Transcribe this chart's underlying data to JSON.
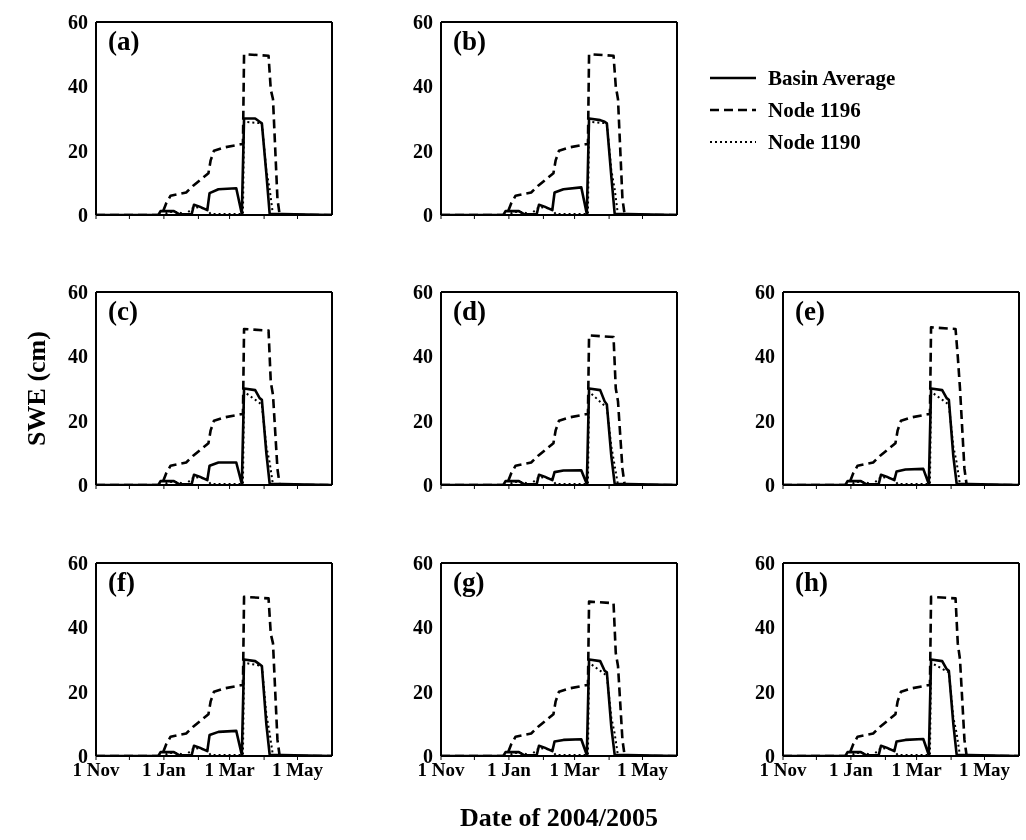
{
  "chart_data": [
    {
      "type": "line",
      "title": "(a)",
      "ylim": [
        0,
        60
      ],
      "yticks": [
        0,
        20,
        40,
        60
      ],
      "xlim": [
        "2004-11-01",
        "2005-06-01"
      ],
      "xticks": [
        {
          "value": "2004-11-01",
          "label": null
        },
        {
          "value": "2004-12-01",
          "label": null
        },
        {
          "value": "2005-01-01",
          "label": null
        },
        {
          "value": "2005-02-01",
          "label": null
        },
        {
          "value": "2005-03-01",
          "label": null
        },
        {
          "value": "2005-04-01",
          "label": null
        },
        {
          "value": "2005-05-01",
          "label": null
        }
      ],
      "tick_labels": "y",
      "series": [
        {
          "color": "#000000",
          "line_style": "solid",
          "x": [
            "2004-11-01",
            "2004-12-27",
            "2004-12-29",
            "2005-01-10",
            "2005-01-15",
            "2005-01-26",
            "2005-01-28",
            "2005-02-02",
            "2005-02-09",
            "2005-02-11",
            "2005-02-19",
            "2005-03-07",
            "2005-03-12",
            "2005-03-14",
            "2005-03-24",
            "2005-03-28",
            "2005-03-30",
            "2005-04-03",
            "2005-04-06",
            "2005-06-01"
          ],
          "values": [
            0,
            0,
            1.2,
            1.2,
            0.2,
            0.3,
            3.2,
            2.6,
            1.5,
            6.8,
            8,
            8.3,
            0.3,
            30,
            30,
            29,
            28.5,
            13,
            0.4,
            0
          ]
        },
        {
          "color": "#000000",
          "line_style": "dashed",
          "x": [
            "2004-11-01",
            "2004-12-30",
            "2005-01-03",
            "2005-01-07",
            "2005-01-21",
            "2005-01-27",
            "2005-02-10",
            "2005-02-12",
            "2005-02-15",
            "2005-02-24",
            "2005-03-11",
            "2005-03-13",
            "2005-03-14",
            "2005-04-05",
            "2005-04-07",
            "2005-04-09",
            "2005-04-13",
            "2005-04-15",
            "2005-06-01"
          ],
          "values": [
            0,
            0,
            3.6,
            6,
            7,
            9,
            13,
            17,
            20,
            21,
            22,
            22,
            50,
            49.5,
            39,
            36,
            5,
            0,
            0
          ]
        },
        {
          "color": "#000000",
          "line_style": "dotted",
          "x": [
            "2004-11-01",
            "2005-01-01",
            "2005-01-05",
            "2005-01-15",
            "2005-01-20",
            "2005-01-28",
            "2005-02-08",
            "2005-02-12",
            "2005-03-13",
            "2005-03-14",
            "2005-03-30",
            "2005-04-03",
            "2005-04-06",
            "2005-04-09",
            "2005-06-01"
          ],
          "values": [
            0,
            0,
            1,
            0.8,
            0,
            2.5,
            2,
            0.3,
            0.3,
            29,
            28.5,
            14,
            8,
            0,
            0
          ]
        }
      ]
    },
    {
      "type": "line",
      "title": "(b)",
      "ylim": [
        0,
        60
      ],
      "yticks": [
        0,
        20,
        40,
        60
      ],
      "xlim": [
        "2004-11-01",
        "2005-06-01"
      ],
      "xticks": [
        {
          "value": "2004-11-01",
          "label": null
        },
        {
          "value": "2004-12-01",
          "label": null
        },
        {
          "value": "2005-01-01",
          "label": null
        },
        {
          "value": "2005-02-01",
          "label": null
        },
        {
          "value": "2005-03-01",
          "label": null
        },
        {
          "value": "2005-04-01",
          "label": null
        },
        {
          "value": "2005-05-01",
          "label": null
        }
      ],
      "tick_labels": "y",
      "legend": "right",
      "series": [
        {
          "name": "Basin Average",
          "color": "#000000",
          "line_style": "solid",
          "x": [
            "2004-11-01",
            "2004-12-27",
            "2004-12-29",
            "2005-01-10",
            "2005-01-15",
            "2005-01-26",
            "2005-01-28",
            "2005-02-02",
            "2005-02-09",
            "2005-02-11",
            "2005-02-19",
            "2005-03-07",
            "2005-03-12",
            "2005-03-14",
            "2005-03-24",
            "2005-03-28",
            "2005-03-30",
            "2005-04-03",
            "2005-04-06",
            "2005-06-01"
          ],
          "values": [
            0,
            0,
            1.2,
            1.2,
            0.2,
            0.3,
            3.2,
            2.6,
            1.5,
            7,
            8,
            8.6,
            0.3,
            30,
            29.5,
            29,
            28.5,
            12,
            0.4,
            0
          ]
        },
        {
          "name": "Node 1196",
          "color": "#000000",
          "line_style": "dashed",
          "x": [
            "2004-11-01",
            "2004-12-30",
            "2005-01-03",
            "2005-01-07",
            "2005-01-21",
            "2005-01-27",
            "2005-02-10",
            "2005-02-12",
            "2005-02-15",
            "2005-02-24",
            "2005-03-11",
            "2005-03-13",
            "2005-03-14",
            "2005-04-05",
            "2005-04-07",
            "2005-04-09",
            "2005-04-13",
            "2005-04-15",
            "2005-06-01"
          ],
          "values": [
            0,
            0,
            3.6,
            6,
            7,
            9,
            13,
            17,
            20,
            21,
            22,
            22,
            50,
            49.5,
            40,
            36,
            5,
            0,
            0
          ]
        },
        {
          "name": "Node 1190",
          "color": "#000000",
          "line_style": "dotted",
          "x": [
            "2004-11-01",
            "2005-01-01",
            "2005-01-05",
            "2005-01-15",
            "2005-01-20",
            "2005-01-28",
            "2005-02-08",
            "2005-02-12",
            "2005-03-13",
            "2005-03-14",
            "2005-03-30",
            "2005-04-03",
            "2005-04-06",
            "2005-04-09",
            "2005-06-01"
          ],
          "values": [
            0,
            0,
            1,
            0.8,
            0,
            2.5,
            2,
            0.3,
            0.3,
            29,
            28.5,
            14,
            8,
            0,
            0
          ]
        }
      ]
    },
    {
      "type": "line",
      "title": "(c)",
      "ylabel": "SWE (cm)",
      "ylim": [
        0,
        60
      ],
      "yticks": [
        0,
        20,
        40,
        60
      ],
      "xlim": [
        "2004-11-01",
        "2005-06-01"
      ],
      "xticks": [
        {
          "value": "2004-11-01",
          "label": null
        },
        {
          "value": "2004-12-01",
          "label": null
        },
        {
          "value": "2005-01-01",
          "label": null
        },
        {
          "value": "2005-02-01",
          "label": null
        },
        {
          "value": "2005-03-01",
          "label": null
        },
        {
          "value": "2005-04-01",
          "label": null
        },
        {
          "value": "2005-05-01",
          "label": null
        }
      ],
      "tick_labels": "y",
      "series": [
        {
          "color": "#000000",
          "line_style": "solid",
          "x": [
            "2004-11-01",
            "2004-12-27",
            "2004-12-29",
            "2005-01-10",
            "2005-01-15",
            "2005-01-26",
            "2005-01-28",
            "2005-02-02",
            "2005-02-09",
            "2005-02-11",
            "2005-02-19",
            "2005-03-07",
            "2005-03-12",
            "2005-03-14",
            "2005-03-24",
            "2005-03-28",
            "2005-03-30",
            "2005-04-03",
            "2005-04-06",
            "2005-06-01"
          ],
          "values": [
            0,
            0,
            1.2,
            1.2,
            0.2,
            0.3,
            3.2,
            2.6,
            1.5,
            6,
            7,
            7,
            0.3,
            30,
            29.5,
            27,
            26.5,
            10,
            0.4,
            0
          ]
        },
        {
          "color": "#000000",
          "line_style": "dashed",
          "x": [
            "2004-11-01",
            "2004-12-30",
            "2005-01-03",
            "2005-01-07",
            "2005-01-21",
            "2005-01-27",
            "2005-02-10",
            "2005-02-12",
            "2005-02-15",
            "2005-02-24",
            "2005-03-11",
            "2005-03-13",
            "2005-03-14",
            "2005-04-05",
            "2005-04-07",
            "2005-04-09",
            "2005-04-13",
            "2005-04-15",
            "2005-06-01"
          ],
          "values": [
            0,
            0,
            3.6,
            6,
            7,
            9,
            13,
            17,
            20,
            21,
            22,
            22,
            48.5,
            48,
            32,
            28,
            5,
            0,
            0
          ]
        },
        {
          "color": "#000000",
          "line_style": "dotted",
          "x": [
            "2004-11-01",
            "2005-01-01",
            "2005-01-05",
            "2005-01-15",
            "2005-01-20",
            "2005-01-28",
            "2005-02-08",
            "2005-02-12",
            "2005-03-13",
            "2005-03-14",
            "2005-03-30",
            "2005-04-03",
            "2005-04-06",
            "2005-04-09",
            "2005-06-01"
          ],
          "values": [
            0,
            0,
            1,
            0.8,
            0,
            2.5,
            2,
            0.3,
            0.3,
            29,
            25,
            12,
            7,
            0,
            0
          ]
        }
      ]
    },
    {
      "type": "line",
      "title": "(d)",
      "ylim": [
        0,
        60
      ],
      "yticks": [
        0,
        20,
        40,
        60
      ],
      "xlim": [
        "2004-11-01",
        "2005-06-01"
      ],
      "xticks": [
        {
          "value": "2004-11-01",
          "label": null
        },
        {
          "value": "2004-12-01",
          "label": null
        },
        {
          "value": "2005-01-01",
          "label": null
        },
        {
          "value": "2005-02-01",
          "label": null
        },
        {
          "value": "2005-03-01",
          "label": null
        },
        {
          "value": "2005-04-01",
          "label": null
        },
        {
          "value": "2005-05-01",
          "label": null
        }
      ],
      "tick_labels": "y",
      "series": [
        {
          "color": "#000000",
          "line_style": "solid",
          "x": [
            "2004-11-01",
            "2004-12-27",
            "2004-12-29",
            "2005-01-10",
            "2005-01-15",
            "2005-01-26",
            "2005-01-28",
            "2005-02-02",
            "2005-02-09",
            "2005-02-11",
            "2005-02-19",
            "2005-03-07",
            "2005-03-12",
            "2005-03-14",
            "2005-03-24",
            "2005-03-28",
            "2005-03-30",
            "2005-04-03",
            "2005-04-06",
            "2005-06-01"
          ],
          "values": [
            0,
            0,
            1.2,
            1.2,
            0.2,
            0.3,
            3.2,
            2.6,
            1.5,
            4,
            4.5,
            4.6,
            0.3,
            30,
            29.5,
            26,
            25,
            9,
            0.4,
            0
          ]
        },
        {
          "color": "#000000",
          "line_style": "dashed",
          "x": [
            "2004-11-01",
            "2004-12-30",
            "2005-01-03",
            "2005-01-07",
            "2005-01-21",
            "2005-01-27",
            "2005-02-10",
            "2005-02-12",
            "2005-02-15",
            "2005-02-24",
            "2005-03-11",
            "2005-03-13",
            "2005-03-14",
            "2005-04-05",
            "2005-04-07",
            "2005-04-09",
            "2005-04-13",
            "2005-04-15",
            "2005-06-01"
          ],
          "values": [
            0,
            0,
            3.6,
            6,
            7,
            9,
            13,
            17,
            20,
            21,
            22,
            22,
            46.5,
            46,
            30,
            26,
            5,
            0,
            0
          ]
        },
        {
          "color": "#000000",
          "line_style": "dotted",
          "x": [
            "2004-11-01",
            "2005-01-01",
            "2005-01-05",
            "2005-01-15",
            "2005-01-20",
            "2005-01-28",
            "2005-02-08",
            "2005-02-12",
            "2005-03-13",
            "2005-03-14",
            "2005-03-30",
            "2005-04-03",
            "2005-04-06",
            "2005-04-09",
            "2005-06-01"
          ],
          "values": [
            0,
            0,
            1,
            0.8,
            0,
            2.5,
            2,
            0.3,
            0.3,
            29,
            24,
            12,
            6,
            0,
            0
          ]
        }
      ]
    },
    {
      "type": "line",
      "title": "(e)",
      "ylim": [
        0,
        60
      ],
      "yticks": [
        0,
        20,
        40,
        60
      ],
      "xlim": [
        "2004-11-01",
        "2005-06-01"
      ],
      "xticks": [
        {
          "value": "2004-11-01",
          "label": null
        },
        {
          "value": "2004-12-01",
          "label": null
        },
        {
          "value": "2005-01-01",
          "label": null
        },
        {
          "value": "2005-02-01",
          "label": null
        },
        {
          "value": "2005-03-01",
          "label": null
        },
        {
          "value": "2005-04-01",
          "label": null
        },
        {
          "value": "2005-05-01",
          "label": null
        }
      ],
      "tick_labels": "y",
      "series": [
        {
          "color": "#000000",
          "line_style": "solid",
          "x": [
            "2004-11-01",
            "2004-12-27",
            "2004-12-29",
            "2005-01-10",
            "2005-01-15",
            "2005-01-26",
            "2005-01-28",
            "2005-02-02",
            "2005-02-09",
            "2005-02-11",
            "2005-02-19",
            "2005-03-07",
            "2005-03-12",
            "2005-03-14",
            "2005-03-24",
            "2005-03-28",
            "2005-03-30",
            "2005-04-03",
            "2005-04-06",
            "2005-06-01"
          ],
          "values": [
            0,
            0,
            1.2,
            1.2,
            0.2,
            0.3,
            3.2,
            2.6,
            1.5,
            4.2,
            4.8,
            5,
            0.3,
            30,
            29.5,
            27,
            26.5,
            9,
            0.4,
            0
          ]
        },
        {
          "color": "#000000",
          "line_style": "dashed",
          "x": [
            "2004-11-01",
            "2004-12-30",
            "2005-01-03",
            "2005-01-07",
            "2005-01-21",
            "2005-01-27",
            "2005-02-10",
            "2005-02-12",
            "2005-02-15",
            "2005-02-24",
            "2005-03-11",
            "2005-03-13",
            "2005-03-14",
            "2005-04-05",
            "2005-04-07",
            "2005-04-09",
            "2005-04-13",
            "2005-04-15",
            "2005-06-01"
          ],
          "values": [
            0,
            0,
            3.6,
            6,
            7,
            9,
            13,
            17,
            20,
            21,
            22,
            22,
            49,
            48.5,
            40,
            30,
            5,
            0,
            0
          ]
        },
        {
          "color": "#000000",
          "line_style": "dotted",
          "x": [
            "2004-11-01",
            "2005-01-01",
            "2005-01-05",
            "2005-01-15",
            "2005-01-20",
            "2005-01-28",
            "2005-02-08",
            "2005-02-12",
            "2005-03-13",
            "2005-03-14",
            "2005-03-30",
            "2005-04-03",
            "2005-04-06",
            "2005-04-09",
            "2005-06-01"
          ],
          "values": [
            0,
            0,
            1,
            0.8,
            0,
            2.5,
            2,
            0.3,
            0.3,
            29,
            25,
            12,
            7,
            0,
            0
          ]
        }
      ]
    },
    {
      "type": "line",
      "title": "(f)",
      "ylim": [
        0,
        60
      ],
      "yticks": [
        0,
        20,
        40,
        60
      ],
      "xlim": [
        "2004-11-01",
        "2005-06-01"
      ],
      "xticks": [
        {
          "value": "2004-11-01",
          "label": "1 Nov"
        },
        {
          "value": "2004-12-01",
          "label": null
        },
        {
          "value": "2005-01-01",
          "label": "1 Jan"
        },
        {
          "value": "2005-02-01",
          "label": null
        },
        {
          "value": "2005-03-01",
          "label": "1 Mar"
        },
        {
          "value": "2005-04-01",
          "label": null
        },
        {
          "value": "2005-05-01",
          "label": "1 May"
        }
      ],
      "series": [
        {
          "color": "#000000",
          "line_style": "solid",
          "x": [
            "2004-11-01",
            "2004-12-27",
            "2004-12-29",
            "2005-01-10",
            "2005-01-15",
            "2005-01-26",
            "2005-01-28",
            "2005-02-02",
            "2005-02-09",
            "2005-02-11",
            "2005-02-19",
            "2005-03-07",
            "2005-03-12",
            "2005-03-14",
            "2005-03-24",
            "2005-03-28",
            "2005-03-30",
            "2005-04-03",
            "2005-04-06",
            "2005-06-01"
          ],
          "values": [
            0,
            0,
            1.2,
            1.2,
            0.2,
            0.3,
            3.2,
            2.6,
            1.5,
            6.5,
            7.5,
            7.8,
            0.3,
            30,
            29.5,
            28.5,
            28,
            10,
            0.4,
            0
          ]
        },
        {
          "color": "#000000",
          "line_style": "dashed",
          "x": [
            "2004-11-01",
            "2004-12-30",
            "2005-01-03",
            "2005-01-07",
            "2005-01-21",
            "2005-01-27",
            "2005-02-10",
            "2005-02-12",
            "2005-02-15",
            "2005-02-24",
            "2005-03-11",
            "2005-03-13",
            "2005-03-14",
            "2005-04-05",
            "2005-04-07",
            "2005-04-09",
            "2005-04-13",
            "2005-04-15",
            "2005-06-01"
          ],
          "values": [
            0,
            0,
            3.6,
            6,
            7,
            9,
            13,
            17,
            20,
            21,
            22,
            22,
            49.5,
            49,
            38,
            35,
            5,
            0,
            0
          ]
        },
        {
          "color": "#000000",
          "line_style": "dotted",
          "x": [
            "2004-11-01",
            "2005-01-01",
            "2005-01-05",
            "2005-01-15",
            "2005-01-20",
            "2005-01-28",
            "2005-02-08",
            "2005-02-12",
            "2005-03-13",
            "2005-03-14",
            "2005-03-30",
            "2005-04-03",
            "2005-04-06",
            "2005-04-09",
            "2005-06-01"
          ],
          "values": [
            0,
            0,
            1,
            0.8,
            0,
            2.5,
            2,
            0.3,
            0.3,
            29,
            28,
            13,
            7,
            0,
            0
          ]
        }
      ]
    },
    {
      "type": "line",
      "title": "(g)",
      "xlabel": "Date of 2004/2005",
      "ylim": [
        0,
        60
      ],
      "yticks": [
        0,
        20,
        40,
        60
      ],
      "xlim": [
        "2004-11-01",
        "2005-06-01"
      ],
      "xticks": [
        {
          "value": "2004-11-01",
          "label": "1 Nov"
        },
        {
          "value": "2004-12-01",
          "label": null
        },
        {
          "value": "2005-01-01",
          "label": "1 Jan"
        },
        {
          "value": "2005-02-01",
          "label": null
        },
        {
          "value": "2005-03-01",
          "label": "1 Mar"
        },
        {
          "value": "2005-04-01",
          "label": null
        },
        {
          "value": "2005-05-01",
          "label": "1 May"
        }
      ],
      "series": [
        {
          "color": "#000000",
          "line_style": "solid",
          "x": [
            "2004-11-01",
            "2004-12-27",
            "2004-12-29",
            "2005-01-10",
            "2005-01-15",
            "2005-01-26",
            "2005-01-28",
            "2005-02-02",
            "2005-02-09",
            "2005-02-11",
            "2005-02-19",
            "2005-03-07",
            "2005-03-12",
            "2005-03-14",
            "2005-03-24",
            "2005-03-28",
            "2005-03-30",
            "2005-04-03",
            "2005-04-06",
            "2005-06-01"
          ],
          "values": [
            0,
            0,
            1.2,
            1.2,
            0.2,
            0.3,
            3.2,
            2.6,
            1.5,
            4.5,
            5,
            5.2,
            0.3,
            30,
            29.5,
            26.5,
            26,
            9,
            0.4,
            0
          ]
        },
        {
          "color": "#000000",
          "line_style": "dashed",
          "x": [
            "2004-11-01",
            "2004-12-30",
            "2005-01-03",
            "2005-01-07",
            "2005-01-21",
            "2005-01-27",
            "2005-02-10",
            "2005-02-12",
            "2005-02-15",
            "2005-02-24",
            "2005-03-11",
            "2005-03-13",
            "2005-03-14",
            "2005-04-05",
            "2005-04-07",
            "2005-04-09",
            "2005-04-13",
            "2005-04-15",
            "2005-06-01"
          ],
          "values": [
            0,
            0,
            3.6,
            6,
            7,
            9,
            13,
            17,
            20,
            21,
            22,
            22,
            48,
            47.5,
            32,
            28,
            5,
            0,
            0
          ]
        },
        {
          "color": "#000000",
          "line_style": "dotted",
          "x": [
            "2004-11-01",
            "2005-01-01",
            "2005-01-05",
            "2005-01-15",
            "2005-01-20",
            "2005-01-28",
            "2005-02-08",
            "2005-02-12",
            "2005-03-13",
            "2005-03-14",
            "2005-03-30",
            "2005-04-03",
            "2005-04-06",
            "2005-04-09",
            "2005-06-01"
          ],
          "values": [
            0,
            0,
            1,
            0.8,
            0,
            2.5,
            2,
            0.3,
            0.3,
            29,
            25,
            12,
            7,
            0,
            0
          ]
        }
      ]
    },
    {
      "type": "line",
      "title": "(h)",
      "ylim": [
        0,
        60
      ],
      "yticks": [
        0,
        20,
        40,
        60
      ],
      "xlim": [
        "2004-11-01",
        "2005-06-01"
      ],
      "xticks": [
        {
          "value": "2004-11-01",
          "label": "1 Nov"
        },
        {
          "value": "2004-12-01",
          "label": null
        },
        {
          "value": "2005-01-01",
          "label": "1 Jan"
        },
        {
          "value": "2005-02-01",
          "label": null
        },
        {
          "value": "2005-03-01",
          "label": "1 Mar"
        },
        {
          "value": "2005-04-01",
          "label": null
        },
        {
          "value": "2005-05-01",
          "label": "1 May"
        }
      ],
      "series": [
        {
          "color": "#000000",
          "line_style": "solid",
          "x": [
            "2004-11-01",
            "2004-12-27",
            "2004-12-29",
            "2005-01-10",
            "2005-01-15",
            "2005-01-26",
            "2005-01-28",
            "2005-02-02",
            "2005-02-09",
            "2005-02-11",
            "2005-02-19",
            "2005-03-07",
            "2005-03-12",
            "2005-03-14",
            "2005-03-24",
            "2005-03-28",
            "2005-03-30",
            "2005-04-03",
            "2005-04-06",
            "2005-06-01"
          ],
          "values": [
            0,
            0,
            1.2,
            1.2,
            0.2,
            0.3,
            3.2,
            2.6,
            1.5,
            4.5,
            5,
            5.3,
            0.3,
            30,
            29.5,
            27,
            26.5,
            10,
            0.4,
            0
          ]
        },
        {
          "color": "#000000",
          "line_style": "dashed",
          "x": [
            "2004-11-01",
            "2004-12-30",
            "2005-01-03",
            "2005-01-07",
            "2005-01-21",
            "2005-01-27",
            "2005-02-10",
            "2005-02-12",
            "2005-02-15",
            "2005-02-24",
            "2005-03-11",
            "2005-03-13",
            "2005-03-14",
            "2005-04-05",
            "2005-04-07",
            "2005-04-09",
            "2005-04-13",
            "2005-04-15",
            "2005-06-01"
          ],
          "values": [
            0,
            0,
            3.6,
            6,
            7,
            9,
            13,
            17,
            20,
            21,
            22,
            22,
            49.5,
            49,
            35,
            30,
            5,
            0,
            0
          ]
        },
        {
          "color": "#000000",
          "line_style": "dotted",
          "x": [
            "2004-11-01",
            "2005-01-01",
            "2005-01-05",
            "2005-01-15",
            "2005-01-20",
            "2005-01-28",
            "2005-02-08",
            "2005-02-12",
            "2005-03-13",
            "2005-03-14",
            "2005-03-30",
            "2005-04-03",
            "2005-04-06",
            "2005-04-09",
            "2005-06-01"
          ],
          "values": [
            0,
            0,
            1,
            0.8,
            0,
            2.5,
            2,
            0.3,
            0.3,
            29,
            26,
            12,
            7,
            0,
            0
          ]
        }
      ]
    }
  ]
}
